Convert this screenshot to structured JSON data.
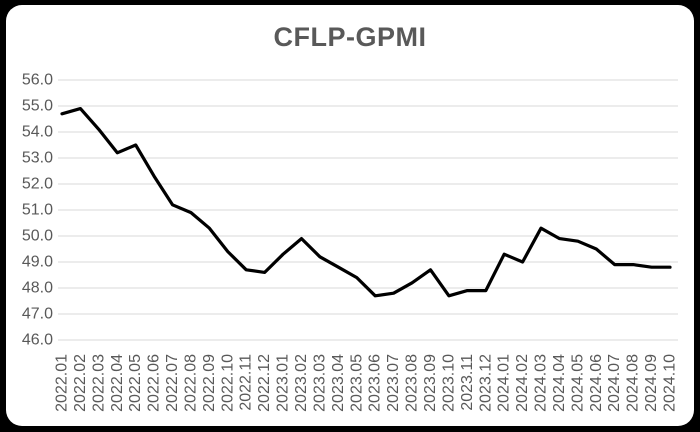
{
  "page": {
    "background_color": "#000000",
    "card_color": "#ffffff"
  },
  "chart_data": {
    "type": "line",
    "title": "CFLP-GPMI",
    "xlabel": "",
    "ylabel": "",
    "ylim": [
      46.0,
      56.0
    ],
    "ytick_step": 1.0,
    "ytick_labels": [
      "56.0",
      "55.0",
      "54.0",
      "53.0",
      "52.0",
      "51.0",
      "50.0",
      "49.0",
      "48.0",
      "47.0",
      "46.0"
    ],
    "grid": "horizontal",
    "legend": "none",
    "line_color": "#000000",
    "gridline_color": "#d9d9d9",
    "label_color": "#595959",
    "title_color": "#595959",
    "categories": [
      "2022.01",
      "2022.02",
      "2022.03",
      "2022.04",
      "2022.05",
      "2022.06",
      "2022.07",
      "2022.08",
      "2022.09",
      "2022.10",
      "2022.11",
      "2022.12",
      "2023.01",
      "2023.02",
      "2023.03",
      "2023.04",
      "2023.05",
      "2023.06",
      "2023.07",
      "2023.08",
      "2023.09",
      "2023.10",
      "2023.11",
      "2023.12",
      "2024.01",
      "2024.02",
      "2024.03",
      "2024.04",
      "2024.05",
      "2024.06",
      "2024.07",
      "2024.08",
      "2024.09",
      "2024.10"
    ],
    "values": [
      54.7,
      54.9,
      54.1,
      53.2,
      53.5,
      52.3,
      51.2,
      50.9,
      50.3,
      49.4,
      48.7,
      48.6,
      49.3,
      49.9,
      49.2,
      48.8,
      48.4,
      47.7,
      47.8,
      48.2,
      48.7,
      47.7,
      47.9,
      47.9,
      49.3,
      49.0,
      50.3,
      49.9,
      49.8,
      49.5,
      48.9,
      48.9,
      48.8,
      48.8
    ]
  }
}
